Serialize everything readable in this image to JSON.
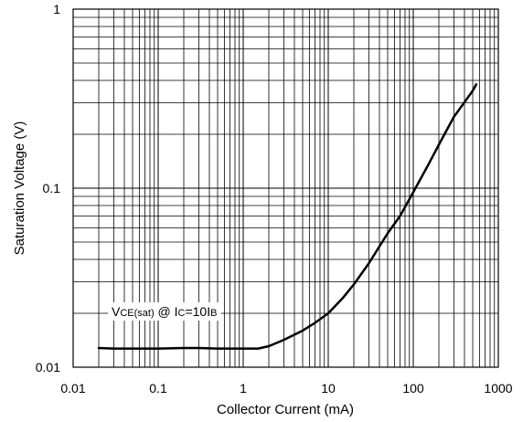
{
  "chart_data": {
    "type": "line",
    "xscale": "log",
    "yscale": "log",
    "xlim": [
      0.01,
      1000
    ],
    "ylim": [
      0.01,
      1
    ],
    "grid": true,
    "xlabel": "Collector Current (mA)",
    "ylabel": "Saturation Voltage (V)",
    "x_ticks": [
      0.01,
      0.1,
      1,
      10,
      100,
      1000
    ],
    "x_tick_labels": [
      "0.01",
      "0.1",
      "1",
      "10",
      "100",
      "1000"
    ],
    "y_ticks": [
      0.01,
      0.1,
      1
    ],
    "y_tick_labels": [
      "0.01",
      "0.1",
      "1"
    ],
    "annotation": {
      "parts": [
        {
          "text": "V",
          "sub": false
        },
        {
          "text": "CE(sat)",
          "sub": true
        },
        {
          "text": " @ I",
          "sub": false
        },
        {
          "text": "C",
          "sub": true
        },
        {
          "text": "=10I",
          "sub": false
        },
        {
          "text": "B",
          "sub": true
        }
      ]
    },
    "series": [
      {
        "x": [
          0.02,
          0.03,
          0.05,
          0.1,
          0.2,
          0.3,
          0.5,
          0.7,
          1,
          1.5,
          2,
          3,
          5,
          7,
          10,
          15,
          20,
          30,
          50,
          70,
          100,
          150,
          200,
          300,
          500,
          550
        ],
        "y": [
          0.0128,
          0.0127,
          0.0127,
          0.0127,
          0.0128,
          0.0128,
          0.0127,
          0.0127,
          0.0127,
          0.0127,
          0.0131,
          0.0142,
          0.016,
          0.0177,
          0.02,
          0.0245,
          0.029,
          0.038,
          0.056,
          0.07,
          0.095,
          0.135,
          0.175,
          0.25,
          0.35,
          0.38
        ]
      }
    ],
    "colors": {
      "line": "#000000",
      "grid": "#000000",
      "background": "#ffffff"
    }
  }
}
